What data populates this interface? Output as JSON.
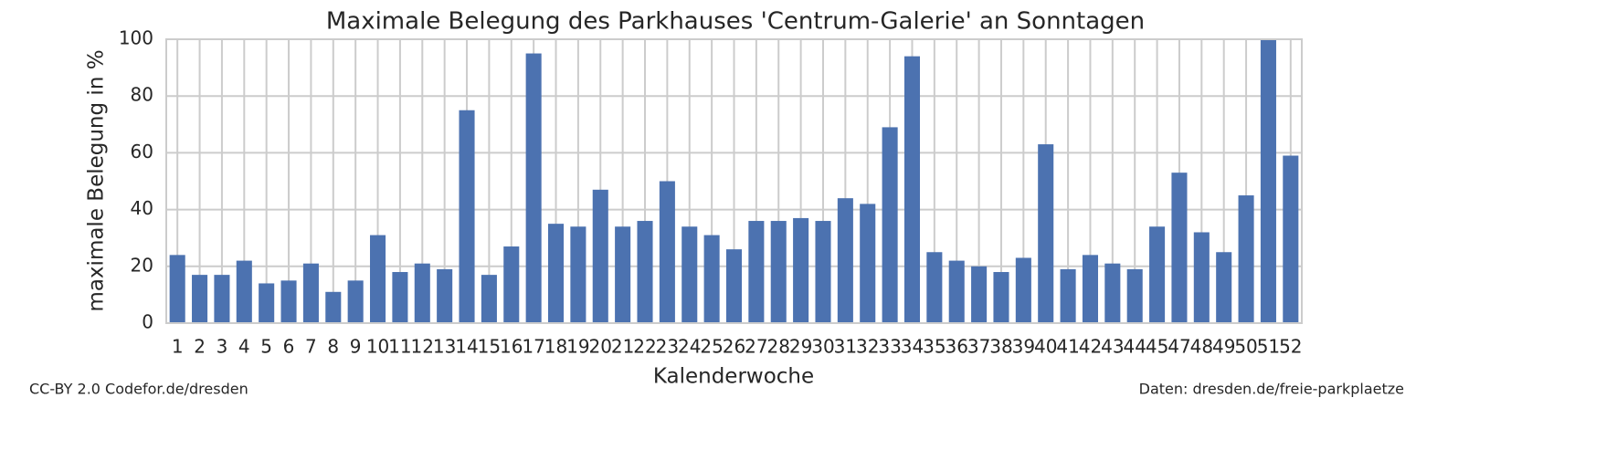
{
  "chart_data": {
    "type": "bar",
    "title": "Maximale Belegung des Parkhauses 'Centrum-Galerie' an Sonntagen",
    "x_label": "Kalenderwoche",
    "y_label": "maximale Belegung in %",
    "credit": "CC-BY 2.0 Codefor.de/dresden",
    "source": "Daten: dresden.de/freie-parkplaetze",
    "categories": [
      "1",
      "2",
      "3",
      "4",
      "5",
      "6",
      "7",
      "8",
      "9",
      "10",
      "11",
      "12",
      "13",
      "14",
      "15",
      "16",
      "17",
      "18",
      "19",
      "20",
      "21",
      "22",
      "23",
      "24",
      "25",
      "26",
      "27",
      "28",
      "29",
      "30",
      "31",
      "32",
      "33",
      "34",
      "35",
      "36",
      "37",
      "38",
      "39",
      "40",
      "41",
      "42",
      "43",
      "44",
      "45",
      "47",
      "48",
      "49",
      "50",
      "51",
      "52"
    ],
    "values": [
      24,
      17,
      17,
      22,
      14,
      15,
      21,
      11,
      15,
      31,
      18,
      21,
      19,
      75,
      17,
      27,
      95,
      35,
      34,
      47,
      34,
      36,
      50,
      34,
      31,
      26,
      36,
      36,
      37,
      36,
      44,
      42,
      69,
      94,
      25,
      22,
      20,
      18,
      23,
      63,
      19,
      24,
      21,
      19,
      34,
      53,
      32,
      25,
      45,
      100,
      59
    ],
    "color": "#4c72b0",
    "ylim": [
      0,
      100
    ],
    "yticks": [
      0,
      20,
      40,
      60,
      80,
      100
    ],
    "grid": true
  }
}
